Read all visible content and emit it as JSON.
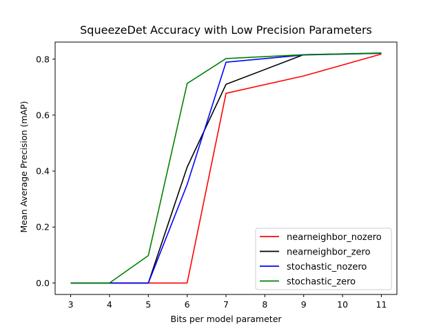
{
  "chart_data": {
    "type": "line",
    "title": "SqueezeDet Accuracy with Low Precision Parameters",
    "xlabel": "Bits per model parameter",
    "ylabel": "Mean Average Precision (mAP)",
    "xlim": [
      2.6,
      11.4
    ],
    "ylim": [
      -0.041,
      0.861
    ],
    "xticks": [
      3,
      4,
      5,
      6,
      7,
      8,
      9,
      10,
      11
    ],
    "xtick_labels": [
      "3",
      "4",
      "5",
      "6",
      "7",
      "8",
      "9",
      "10",
      "11"
    ],
    "yticks": [
      0.0,
      0.2,
      0.4,
      0.6,
      0.8
    ],
    "ytick_labels": [
      "0.0",
      "0.2",
      "0.4",
      "0.6",
      "0.8"
    ],
    "grid": false,
    "legend_position": "lower-right",
    "series": [
      {
        "name": "nearneighbor_nozero",
        "color": "#ff0000",
        "x": [
          3,
          4,
          5,
          6,
          7,
          9,
          11
        ],
        "y": [
          0.0,
          0.0,
          0.0,
          0.0,
          0.678,
          0.74,
          0.818
        ]
      },
      {
        "name": "nearneighbor_zero",
        "color": "#000000",
        "x": [
          3,
          4,
          5,
          6,
          7,
          9,
          11
        ],
        "y": [
          0.0,
          0.0,
          0.0,
          0.414,
          0.71,
          0.816,
          0.821
        ]
      },
      {
        "name": "stochastic_nozero",
        "color": "#0000ff",
        "x": [
          3,
          4,
          5,
          6,
          7,
          9,
          11
        ],
        "y": [
          0.0,
          0.0,
          0.0,
          0.352,
          0.789,
          0.815,
          0.821
        ]
      },
      {
        "name": "stochastic_zero",
        "color": "#008000",
        "x": [
          3,
          4,
          5,
          6,
          7,
          9,
          11
        ],
        "y": [
          0.0,
          0.0,
          0.098,
          0.713,
          0.802,
          0.816,
          0.822
        ]
      }
    ]
  }
}
